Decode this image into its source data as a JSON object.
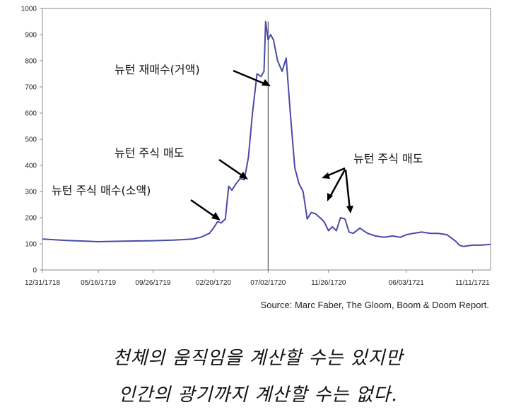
{
  "chart_data": {
    "type": "line",
    "title": "",
    "xlabel": "",
    "ylabel": "",
    "ylim": [
      0,
      1000
    ],
    "yticks": [
      0,
      100,
      200,
      300,
      400,
      500,
      600,
      700,
      800,
      900,
      1000
    ],
    "xticks": [
      "12/31/1718",
      "05/16/1719",
      "09/26/1719",
      "02/20/1720",
      "07/02/1720",
      "11/26/1720",
      "06/03/1721",
      "11/11/1721"
    ],
    "grid": false,
    "legend": "none",
    "line_color": "#4a4aa8",
    "series": [
      {
        "x": [
          "12/31/1718",
          "02/28/1719",
          "05/16/1719",
          "07/15/1719",
          "09/26/1719",
          "11/15/1719",
          "12/31/1719",
          "01/20/1720",
          "02/10/1720",
          "02/20/1720",
          "03/01/1720",
          "03/10/1720",
          "03/20/1720",
          "03/28/1720",
          "04/05/1720",
          "04/15/1720",
          "04/25/1720",
          "05/05/1720",
          "05/15/1720",
          "05/25/1720",
          "06/05/1720",
          "06/15/1720",
          "06/22/1720",
          "06/26/1720",
          "07/02/1720",
          "07/08/1720",
          "07/15/1720",
          "07/25/1720",
          "08/05/1720",
          "08/15/1720",
          "08/25/1720",
          "09/05/1720",
          "09/15/1720",
          "09/25/1720",
          "10/05/1720",
          "10/15/1720",
          "10/25/1720",
          "11/05/1720",
          "11/15/1720",
          "11/26/1720",
          "12/05/1720",
          "12/15/1720",
          "12/25/1720",
          "01/05/1721",
          "01/15/1721",
          "01/25/1721",
          "02/10/1721",
          "03/01/1721",
          "03/20/1721",
          "04/10/1721",
          "05/01/1721",
          "05/20/1721",
          "06/03/1721",
          "06/20/1721",
          "07/10/1721",
          "08/01/1721",
          "08/20/1721",
          "09/10/1721",
          "10/01/1721",
          "10/10/1721",
          "10/20/1721",
          "11/11/1721",
          "12/01/1721",
          "12/25/1721"
        ],
        "values": [
          118,
          113,
          108,
          110,
          112,
          114,
          118,
          125,
          140,
          160,
          185,
          180,
          195,
          320,
          305,
          330,
          350,
          345,
          430,
          600,
          750,
          740,
          760,
          950,
          880,
          900,
          880,
          800,
          760,
          810,
          600,
          390,
          330,
          300,
          195,
          220,
          215,
          200,
          185,
          150,
          165,
          150,
          200,
          195,
          145,
          140,
          160,
          140,
          130,
          125,
          130,
          125,
          135,
          140,
          145,
          140,
          140,
          135,
          110,
          95,
          90,
          95,
          95,
          98
        ]
      }
    ],
    "vertical_line": "07/02/1720",
    "annotations": [
      {
        "text": "뉴턴 재매수(거액)"
      },
      {
        "text": "뉴턴 주식 매도"
      },
      {
        "text": "뉴턴 주식 매수(소액)"
      },
      {
        "text": "뉴턴 주식 매도"
      }
    ]
  },
  "source": "Source: Marc Faber, The Gloom, Boom & Doom Report.",
  "caption": {
    "line1": "천체의 움직임을 계산할 수는 있지만",
    "line2": "인간의 광기까지 계산할 수는 없다."
  }
}
